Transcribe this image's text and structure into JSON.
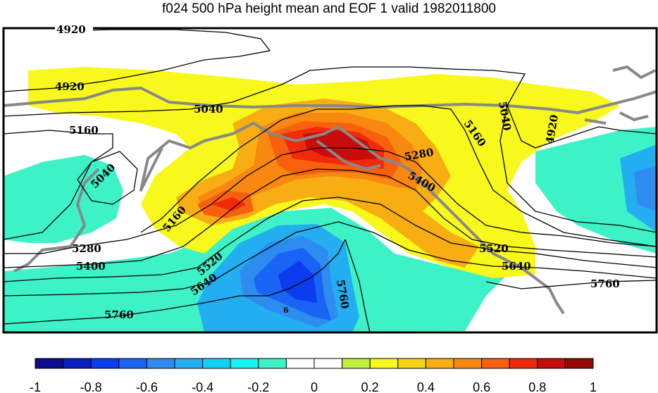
{
  "title": "f024 500 hPa height mean and EOF 1 valid 1982011800",
  "colorbar": {
    "colors": [
      "#0b0b8c",
      "#0a1fbe",
      "#0b3cf0",
      "#1964f5",
      "#2e8cf0",
      "#22aef0",
      "#10d2f4",
      "#19f2f2",
      "#3ef2c8",
      "#ffffff",
      "#ffffff",
      "#c0f040",
      "#f8f81c",
      "#f8d314",
      "#f8ad12",
      "#f88810",
      "#f8600e",
      "#f02a0a",
      "#c80c0c",
      "#960808"
    ],
    "tick_labels": [
      "-1",
      "-0.8",
      "-0.6",
      "-0.4",
      "-0.2",
      "0",
      "0.2",
      "0.4",
      "0.6",
      "0.8",
      "1"
    ]
  },
  "contour_labels": [
    {
      "text": "4920"
    },
    {
      "text": "4920"
    },
    {
      "text": "4920"
    },
    {
      "text": "5040"
    },
    {
      "text": "5040"
    },
    {
      "text": "5040"
    },
    {
      "text": "5160"
    },
    {
      "text": "5160"
    },
    {
      "text": "5160"
    },
    {
      "text": "5280"
    },
    {
      "text": "5280"
    },
    {
      "text": "5400"
    },
    {
      "text": "5400"
    },
    {
      "text": "5520"
    },
    {
      "text": "5520"
    },
    {
      "text": "5640"
    },
    {
      "text": "5640"
    },
    {
      "text": "5760"
    },
    {
      "text": "5760"
    },
    {
      "text": "5760"
    },
    {
      "text": "6"
    }
  ]
}
